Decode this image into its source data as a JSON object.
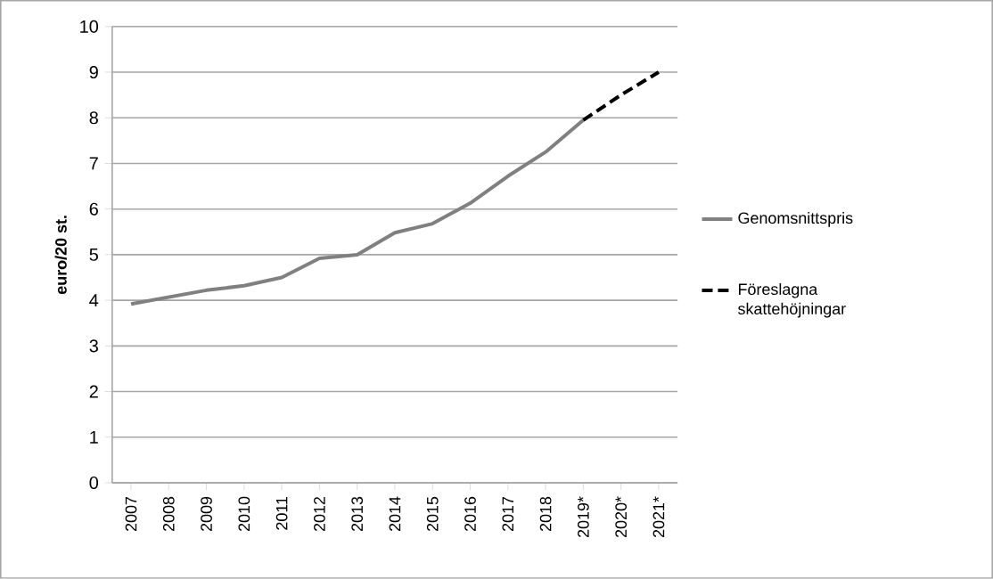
{
  "chart_data": {
    "type": "line",
    "ylabel": "euro/20 st.",
    "categories": [
      "2007",
      "2008",
      "2009",
      "2010",
      "2011",
      "2012",
      "2013",
      "2014",
      "2015",
      "2016",
      "2017",
      "2018",
      "2019*",
      "2020*",
      "2021*"
    ],
    "series": [
      {
        "name": "Genomsnittspris",
        "color": "#808080",
        "line_style": "solid",
        "values": [
          3.92,
          4.07,
          4.22,
          4.32,
          4.5,
          4.92,
          5.0,
          5.48,
          5.68,
          6.13,
          6.72,
          7.25,
          7.95,
          null,
          null
        ]
      },
      {
        "name": "Föreslagna skattehöjningar",
        "color": "#000000",
        "line_style": "dashed",
        "values": [
          null,
          null,
          null,
          null,
          null,
          null,
          null,
          null,
          null,
          null,
          null,
          null,
          7.95,
          8.5,
          9.0
        ]
      }
    ],
    "ylim": [
      0,
      10
    ],
    "yticks": [
      0,
      1,
      2,
      3,
      4,
      5,
      6,
      7,
      8,
      9,
      10
    ],
    "grid": "y",
    "legend": "right",
    "marker": "none"
  }
}
